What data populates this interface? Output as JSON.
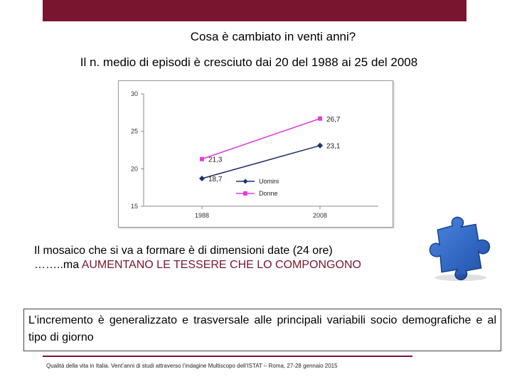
{
  "slide": {
    "title": "Cosa è cambiato in venti anni?",
    "subtitle": "Il n. medio di episodi è cresciuto dai 20 del 1988 ai 25 del 2008",
    "mosaic_line1": "Il mosaico che si va a formare è di dimensioni date (24 ore)",
    "mosaic_prefix": "……..ma ",
    "mosaic_highlight": "AUMENTANO LE TESSERE CHE LO COMPONGONO",
    "boxed_text": "L’incremento è generalizzato e trasversale alle principali variabili socio demografiche e al tipo di giorno",
    "footer": "Qualità della vita in Italia. Vent’anni di studi attraverso l’indagine Multiscopo dell’ISTAT – Roma, 27-28 gennaio 2015",
    "accent_color": "#7a1530",
    "decoration_icon": "puzzle-piece-icon"
  },
  "chart_data": {
    "type": "line",
    "categories": [
      "1988",
      "2008"
    ],
    "series": [
      {
        "name": "Uomini",
        "values": [
          18.7,
          23.1
        ],
        "labels": [
          "18,7",
          "23,1"
        ],
        "color": "#1f2f6e"
      },
      {
        "name": "Donne",
        "values": [
          21.3,
          26.7
        ],
        "labels": [
          "21,3",
          "26,7"
        ],
        "color": "#e23ce2"
      }
    ],
    "y_ticks": [
      "15",
      "20",
      "25",
      "30"
    ],
    "ylim": [
      15,
      30
    ],
    "grid": false,
    "legend_position": "bottom-center"
  }
}
